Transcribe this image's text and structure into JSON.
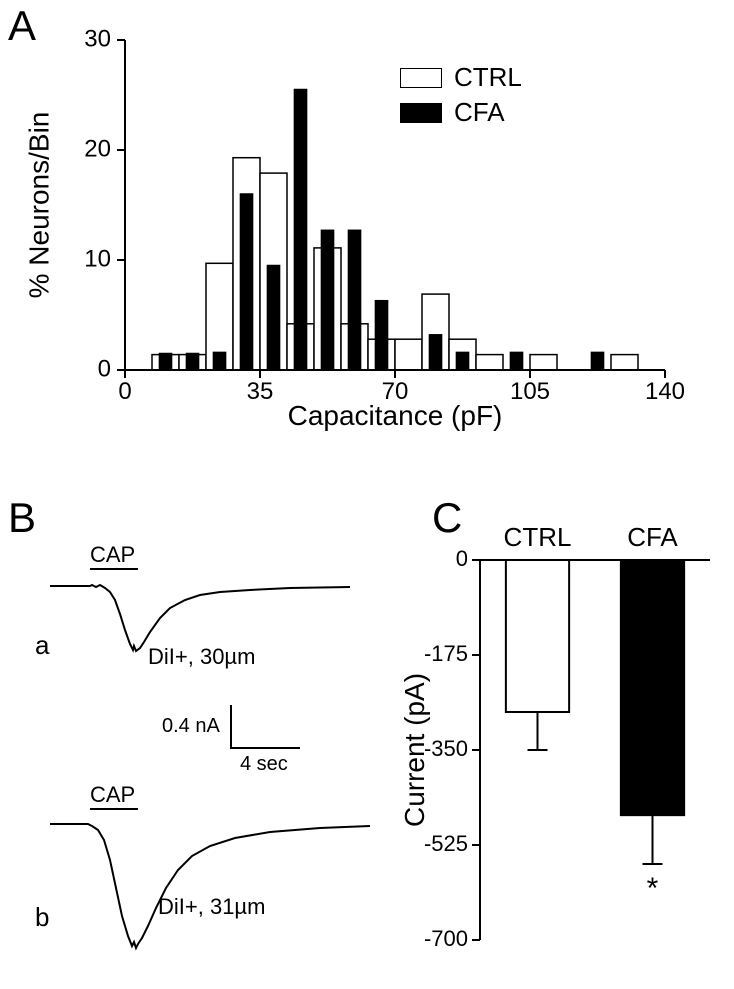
{
  "panelA": {
    "label": "A",
    "type": "histogram",
    "xlabel": "Capacitance (pF)",
    "ylabel": "% Neurons/Bin",
    "xlim": [
      0,
      140
    ],
    "ylim": [
      0,
      30
    ],
    "xticks": [
      0,
      35,
      70,
      105,
      140
    ],
    "yticks": [
      0,
      10,
      20,
      30
    ],
    "tick_fontsize": 24,
    "axis_title_fontsize": 28,
    "bin_width": 7,
    "background_color": "#ffffff",
    "axis_color": "#000000",
    "ctrl_fill": "#ffffff",
    "cfa_fill": "#000000",
    "stroke_width": 1.5,
    "legend": {
      "items": [
        {
          "label": "CTRL",
          "fill": "#ffffff",
          "stroke": "#000000"
        },
        {
          "label": "CFA",
          "fill": "#000000",
          "stroke": "#000000"
        }
      ],
      "fontsize": 26
    },
    "ctrl": [
      0,
      1.4,
      1.4,
      9.7,
      19.3,
      17.9,
      4.2,
      11.1,
      4.2,
      2.8,
      2.8,
      6.9,
      2.8,
      1.4,
      0,
      1.4,
      0,
      0,
      1.4,
      0
    ],
    "cfa": [
      0,
      1.5,
      1.5,
      1.6,
      16.0,
      9.5,
      25.5,
      12.7,
      12.7,
      6.3,
      0,
      3.2,
      1.6,
      0,
      1.6,
      0,
      0,
      1.6,
      0,
      0
    ]
  },
  "panelB": {
    "label": "B",
    "type": "current-traces",
    "stim_label": "CAP",
    "traces": [
      {
        "letter": "a",
        "annotation": "DiI+, 30µm"
      },
      {
        "letter": "b",
        "annotation": "DiI+, 31µm"
      }
    ],
    "scale": {
      "y_label": "0.4 nA",
      "x_label": "4 sec"
    },
    "line_color": "#000000",
    "line_width": 2,
    "font_size": 22
  },
  "panelC": {
    "label": "C",
    "type": "bar",
    "ylabel": "Current (pA)",
    "ylim": [
      0,
      -700
    ],
    "yticks": [
      0,
      -175,
      -350,
      -525,
      -700
    ],
    "tick_fontsize": 22,
    "axis_title_fontsize": 28,
    "categories": [
      "CTRL",
      "CFA"
    ],
    "values": [
      -280,
      -470
    ],
    "errors": [
      70,
      90
    ],
    "bar_colors": [
      "#ffffff",
      "#000000"
    ],
    "bar_stroke": "#000000",
    "bar_width": 0.55,
    "sig_marker": "*",
    "sig_fontsize": 30
  }
}
